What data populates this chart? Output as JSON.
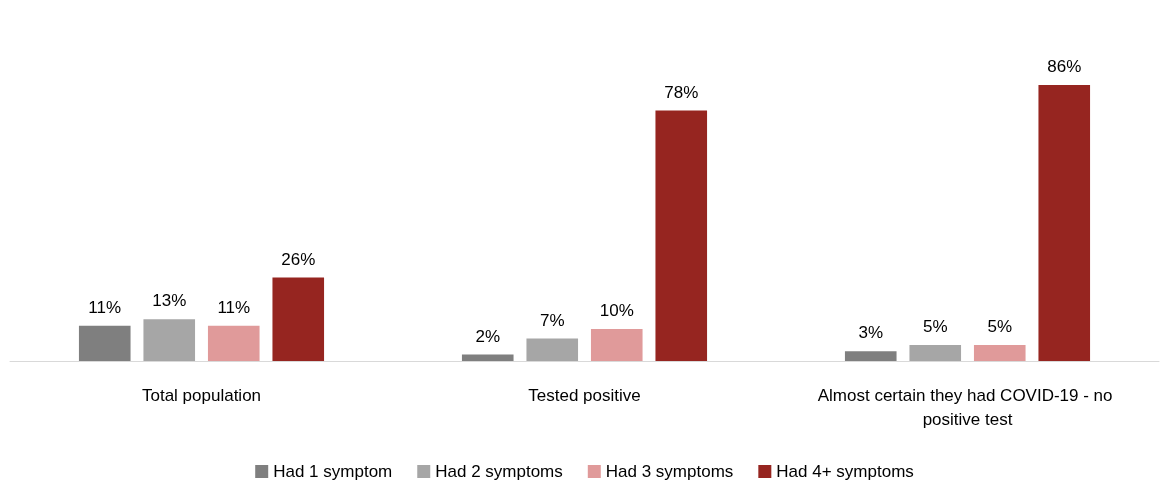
{
  "chart_data": {
    "type": "bar",
    "categories": [
      "Total population",
      "Tested positive",
      "Almost certain they had COVID-19 - no positive test"
    ],
    "series": [
      {
        "name": "Had 1 symptom",
        "color": "#7f7f7f",
        "values": [
          11,
          2,
          3
        ],
        "value_labels": [
          "11%",
          "2%",
          "3%"
        ]
      },
      {
        "name": "Had 2 symptoms",
        "color": "#a6a6a6",
        "values": [
          13,
          7,
          5
        ],
        "value_labels": [
          "13%",
          "7%",
          "5%"
        ]
      },
      {
        "name": "Had 3 symptoms",
        "color": "#e09a9a",
        "values": [
          11,
          10,
          5
        ],
        "value_labels": [
          "11%",
          "10%",
          "5%"
        ]
      },
      {
        "name": "Had 4+ symptoms",
        "color": "#962520",
        "values": [
          26,
          78,
          86
        ],
        "value_labels": [
          "26%",
          "78%",
          "86%"
        ]
      }
    ],
    "legend": "bottom"
  }
}
